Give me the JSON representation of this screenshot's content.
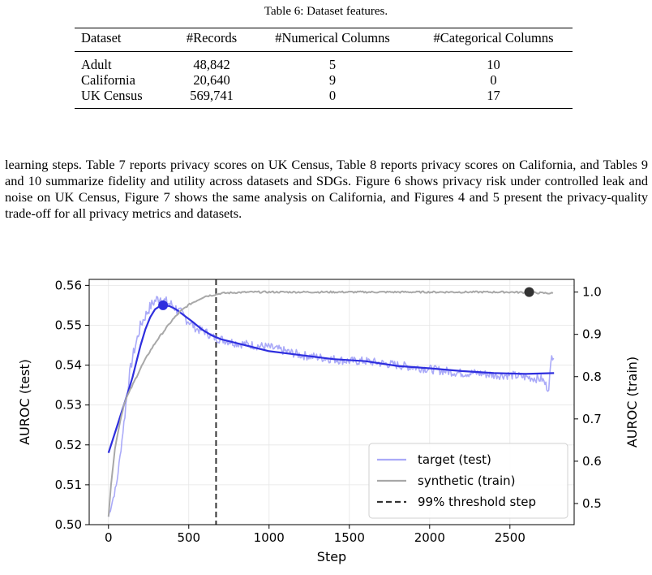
{
  "table": {
    "caption": "Table 6: Dataset features.",
    "columns": [
      "Dataset",
      "#Records",
      "#Numerical Columns",
      "#Categorical Columns"
    ],
    "rows": [
      [
        "Adult",
        "48,842",
        "5",
        "10"
      ],
      [
        "California",
        "20,640",
        "9",
        "0"
      ],
      [
        "UK Census",
        "569,741",
        "0",
        "17"
      ]
    ]
  },
  "paragraph": "learning steps. Table 7 reports privacy scores on UK Census, Table 8 reports privacy scores on California, and Tables 9 and 10 summarize fidelity and utility across datasets and SDGs. Figure 6 shows privacy risk under controlled leak and noise on UK Census, Figure 7 shows the same analysis on California, and Figures 4 and 5 present the privacy-quality trade-off for all privacy metrics and datasets.",
  "chart_data": {
    "type": "line",
    "xlabel": "Step",
    "ylabel_left": "AUROC (test)",
    "ylabel_right": "AUROC (train)",
    "xlim": [
      -120,
      2900
    ],
    "ylim_left": [
      0.5,
      0.5615
    ],
    "ylim_right": [
      0.45,
      1.03
    ],
    "xticks": [
      0,
      500,
      1000,
      1500,
      2000,
      2500
    ],
    "yticks_left": [
      0.5,
      0.51,
      0.52,
      0.53,
      0.54,
      0.55,
      0.56
    ],
    "yticks_right": [
      0.5,
      0.6,
      0.7,
      0.8,
      0.9,
      1.0
    ],
    "grid": true,
    "legend_position": "lower-right",
    "threshold_step": 670,
    "series": [
      {
        "name": "target (test)",
        "axis": "left",
        "color": "#aaaaf8",
        "x": [
          0,
          25,
          50,
          75,
          100,
          125,
          150,
          175,
          200,
          225,
          250,
          275,
          300,
          325,
          350,
          375,
          400,
          450,
          500,
          550,
          600,
          650,
          700,
          750,
          800,
          900,
          1000,
          1100,
          1200,
          1300,
          1400,
          1500,
          1600,
          1700,
          1800,
          1900,
          2000,
          2100,
          2200,
          2300,
          2400,
          2500,
          2600,
          2700,
          2740,
          2760,
          2775
        ],
        "values": [
          0.502,
          0.506,
          0.51,
          0.518,
          0.527,
          0.536,
          0.542,
          0.546,
          0.55,
          0.552,
          0.554,
          0.5555,
          0.5565,
          0.557,
          0.556,
          0.5555,
          0.555,
          0.553,
          0.551,
          0.549,
          0.5485,
          0.547,
          0.5465,
          0.546,
          0.5455,
          0.545,
          0.5445,
          0.5435,
          0.5425,
          0.542,
          0.5415,
          0.541,
          0.541,
          0.5405,
          0.54,
          0.5395,
          0.539,
          0.5385,
          0.538,
          0.538,
          0.5375,
          0.5375,
          0.537,
          0.5365,
          0.534,
          0.542,
          0.543
        ]
      },
      {
        "name": "target smoothed",
        "axis": "left",
        "color": "#2e2ede",
        "x": [
          0,
          40,
          80,
          120,
          150,
          175,
          200,
          230,
          260,
          290,
          320,
          340,
          380,
          420,
          470,
          520,
          580,
          640,
          700,
          800,
          900,
          1000,
          1200,
          1400,
          1600,
          1800,
          2000,
          2200,
          2400,
          2600,
          2775
        ],
        "values": [
          0.518,
          0.523,
          0.528,
          0.533,
          0.537,
          0.541,
          0.545,
          0.549,
          0.552,
          0.554,
          0.5548,
          0.555,
          0.5548,
          0.554,
          0.5525,
          0.551,
          0.549,
          0.5475,
          0.5465,
          0.5455,
          0.5445,
          0.5435,
          0.5425,
          0.5415,
          0.541,
          0.5398,
          0.5392,
          0.5385,
          0.538,
          0.5378,
          0.538
        ]
      },
      {
        "name": "synthetic (train)",
        "axis": "right",
        "color": "#a8a8a8",
        "x": [
          0,
          20,
          40,
          70,
          100,
          150,
          200,
          250,
          300,
          350,
          400,
          450,
          500,
          550,
          600,
          650,
          700,
          800,
          900,
          1000,
          1200,
          1500,
          2000,
          2500,
          2775
        ],
        "values": [
          0.47,
          0.56,
          0.63,
          0.69,
          0.74,
          0.78,
          0.82,
          0.855,
          0.885,
          0.91,
          0.935,
          0.955,
          0.97,
          0.98,
          0.99,
          0.993,
          0.997,
          0.999,
          1.0,
          1.0,
          1.0,
          1.0,
          1.0,
          1.0,
          0.997
        ]
      }
    ],
    "markers": [
      {
        "series": "target smoothed",
        "x": 340,
        "y": 0.555
      },
      {
        "series": "synthetic (train)",
        "x": 2620,
        "y": 1.0
      }
    ],
    "legend": [
      {
        "label": "target (test)",
        "style": "solid",
        "color": "#aaaaf8"
      },
      {
        "label": "synthetic (train)",
        "style": "solid",
        "color": "#a8a8a8"
      },
      {
        "label": "99% threshold step",
        "style": "dashed",
        "color": "#333333"
      }
    ]
  }
}
